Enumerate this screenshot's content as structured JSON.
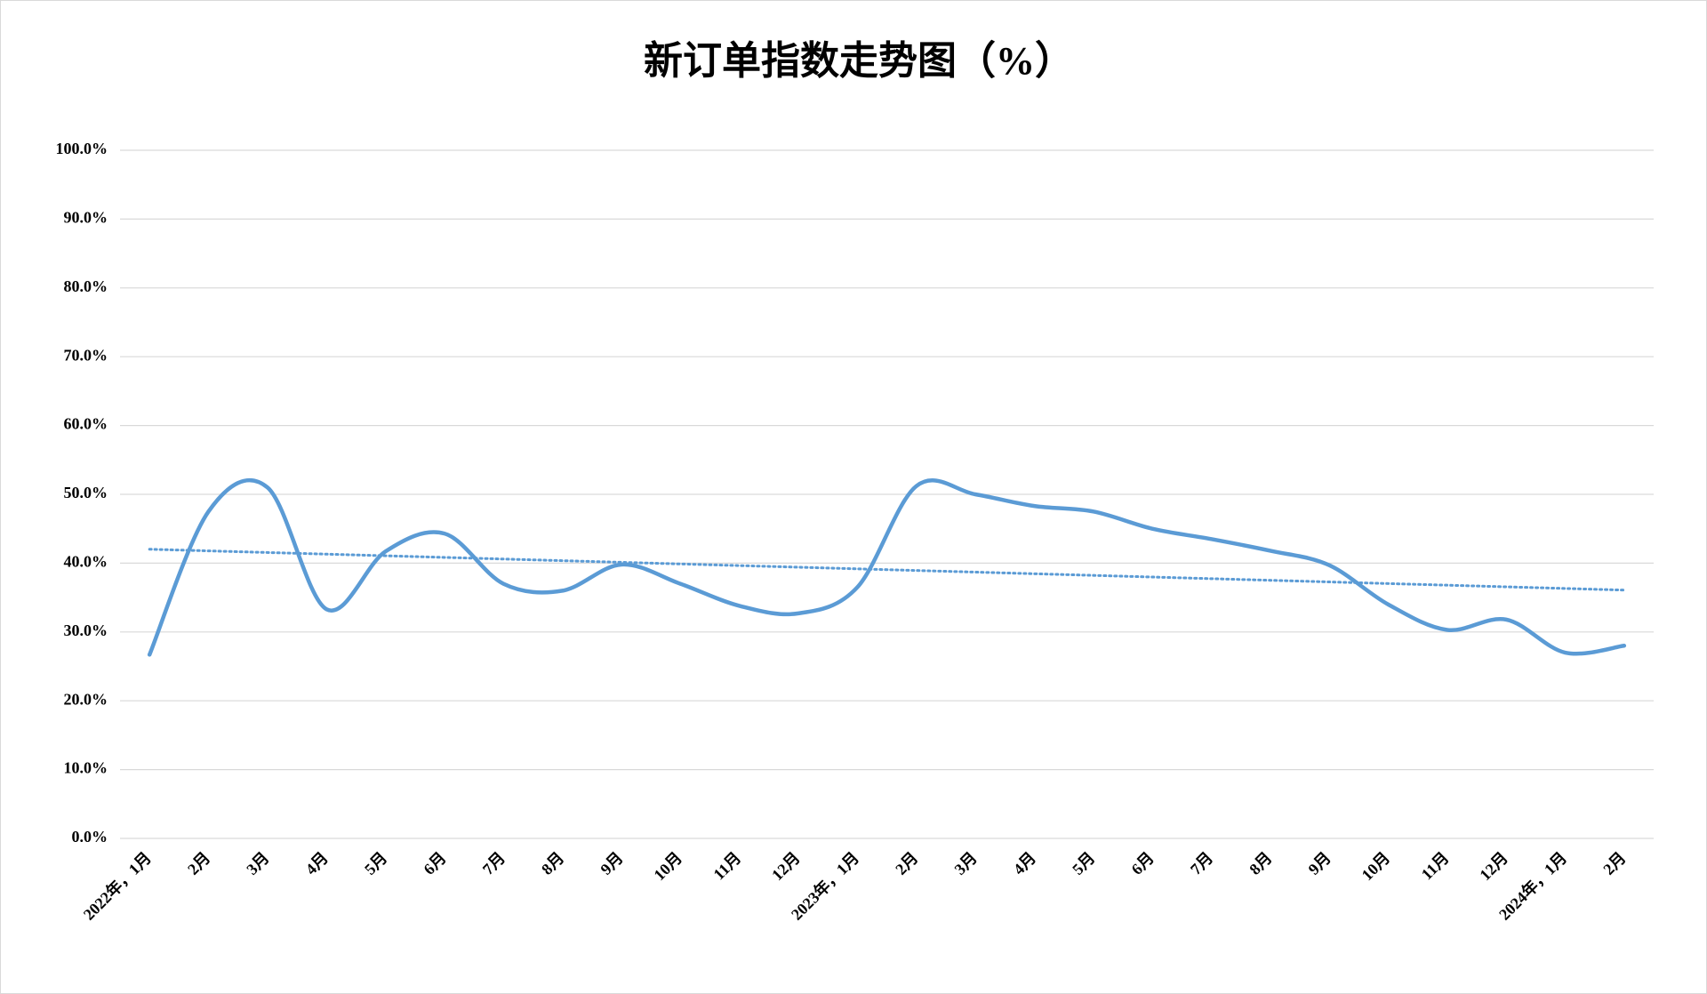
{
  "chart_data": {
    "type": "line",
    "title": "新订单指数走势图（%）",
    "categories": [
      "2022年，1月",
      "2月",
      "3月",
      "4月",
      "5月",
      "6月",
      "7月",
      "8月",
      "9月",
      "10月",
      "11月",
      "12月",
      "2023年，1月",
      "2月",
      "3月",
      "4月",
      "5月",
      "6月",
      "7月",
      "8月",
      "9月",
      "10月",
      "11月",
      "12月",
      "2024年，1月",
      "2月"
    ],
    "series": [
      {
        "name": "新订单指数",
        "color": "#5b9bd5",
        "values": [
          26.7,
          47.5,
          51.0,
          33.3,
          41.7,
          44.3,
          37.0,
          36.0,
          39.8,
          37.0,
          33.8,
          32.7,
          36.5,
          51.2,
          50.0,
          48.3,
          47.5,
          45.0,
          43.5,
          41.8,
          39.7,
          34.0,
          30.3,
          31.8,
          27.0,
          28.0
        ]
      }
    ],
    "trendline": true,
    "smooth": true,
    "ylim": [
      0,
      100
    ],
    "yticks": [
      {
        "value": 0,
        "label": "0.0%"
      },
      {
        "value": 10,
        "label": "10.0%"
      },
      {
        "value": 20,
        "label": "20.0%"
      },
      {
        "value": 30,
        "label": "30.0%"
      },
      {
        "value": 40,
        "label": "40.0%"
      },
      {
        "value": 50,
        "label": "50.0%"
      },
      {
        "value": 60,
        "label": "60.0%"
      },
      {
        "value": 70,
        "label": "70.0%"
      },
      {
        "value": 80,
        "label": "80.0%"
      },
      {
        "value": 90,
        "label": "90.0%"
      },
      {
        "value": 100,
        "label": "100.0%"
      }
    ],
    "grid": true
  }
}
